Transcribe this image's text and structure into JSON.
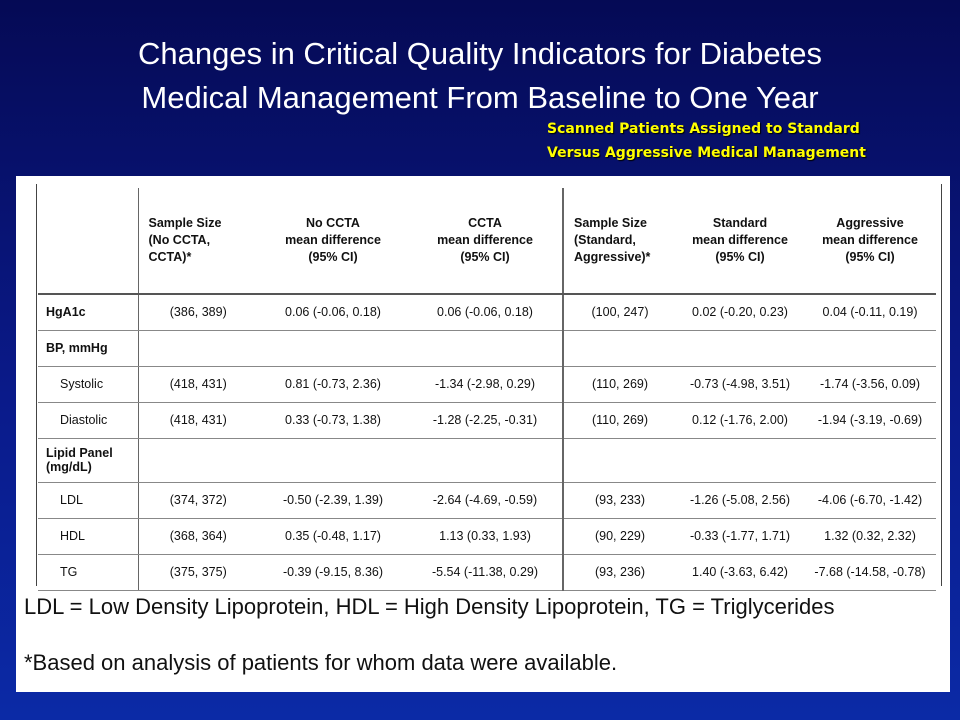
{
  "title_line1": "Changes in Critical Quality Indicators for Diabetes",
  "title_line2": "Medical Management From Baseline to One Year",
  "subtitle_line1": "Scanned Patients Assigned to Standard",
  "subtitle_line2": "Versus Aggressive Medical Management",
  "table": {
    "headers": [
      "",
      "Sample Size (No CCTA, CCTA)*",
      "No CCTA mean difference (95% CI)",
      "CCTA mean difference (95% CI)",
      "Sample Size (Standard, Aggressive)*",
      "Standard mean difference (95% CI)",
      "Aggressive mean difference (95% CI)"
    ],
    "header_lines": [
      [
        ""
      ],
      [
        "Sample Size",
        "(No CCTA,",
        "CCTA)*"
      ],
      [
        "No CCTA",
        "mean difference",
        "(95% CI)"
      ],
      [
        "CCTA",
        "mean difference",
        "(95% CI)"
      ],
      [
        "Sample Size",
        "(Standard,",
        "Aggressive)*"
      ],
      [
        "Standard",
        "mean difference",
        "(95% CI)"
      ],
      [
        "Aggressive",
        "mean difference",
        "(95% CI)"
      ]
    ],
    "rows": [
      {
        "label": "HgA1c",
        "bold": true,
        "sub": false,
        "cells": [
          "(386, 389)",
          "0.06 (-0.06, 0.18)",
          "0.06 (-0.06, 0.18)",
          "(100, 247)",
          "0.02 (-0.20, 0.23)",
          "0.04 (-0.11, 0.19)"
        ]
      },
      {
        "label": "BP, mmHg",
        "bold": true,
        "sub": false,
        "cells": [
          "",
          "",
          "",
          "",
          "",
          ""
        ]
      },
      {
        "label": "Systolic",
        "bold": false,
        "sub": true,
        "cells": [
          "(418, 431)",
          "0.81 (-0.73, 2.36)",
          "-1.34 (-2.98, 0.29)",
          "(110, 269)",
          "-0.73 (-4.98, 3.51)",
          "-1.74 (-3.56, 0.09)"
        ]
      },
      {
        "label": "Diastolic",
        "bold": false,
        "sub": true,
        "cells": [
          "(418, 431)",
          "0.33 (-0.73, 1.38)",
          "-1.28 (-2.25, -0.31)",
          "(110, 269)",
          "0.12 (-1.76, 2.00)",
          "-1.94 (-3.19, -0.69)"
        ]
      },
      {
        "label": "Lipid Panel (mg/dL)",
        "bold": true,
        "sub": false,
        "tall": true,
        "cells": [
          "",
          "",
          "",
          "",
          "",
          ""
        ]
      },
      {
        "label": "LDL",
        "bold": false,
        "sub": true,
        "cells": [
          "(374, 372)",
          "-0.50 (-2.39, 1.39)",
          "-2.64 (-4.69, -0.59)",
          "(93, 233)",
          "-1.26 (-5.08, 2.56)",
          "-4.06 (-6.70, -1.42)"
        ]
      },
      {
        "label": "HDL",
        "bold": false,
        "sub": true,
        "cells": [
          "(368, 364)",
          "0.35 (-0.48, 1.17)",
          "1.13 (0.33, 1.93)",
          "(90, 229)",
          "-0.33 (-1.77, 1.71)",
          "1.32 (0.32, 2.32)"
        ]
      },
      {
        "label": "TG",
        "bold": false,
        "sub": true,
        "cells": [
          "(375, 375)",
          "-0.39 (-9.15, 8.36)",
          "-5.54 (-11.38, 0.29)",
          "(93, 236)",
          "1.40 (-3.63, 6.42)",
          "-7.68 (-14.58, -0.78)"
        ]
      }
    ]
  },
  "footnote_abbrev": "LDL = Low Density Lipoprotein, HDL = High Density Lipoprotein, TG = Triglycerides",
  "footnote_asterisk": "*Based on analysis of patients for whom data were available."
}
